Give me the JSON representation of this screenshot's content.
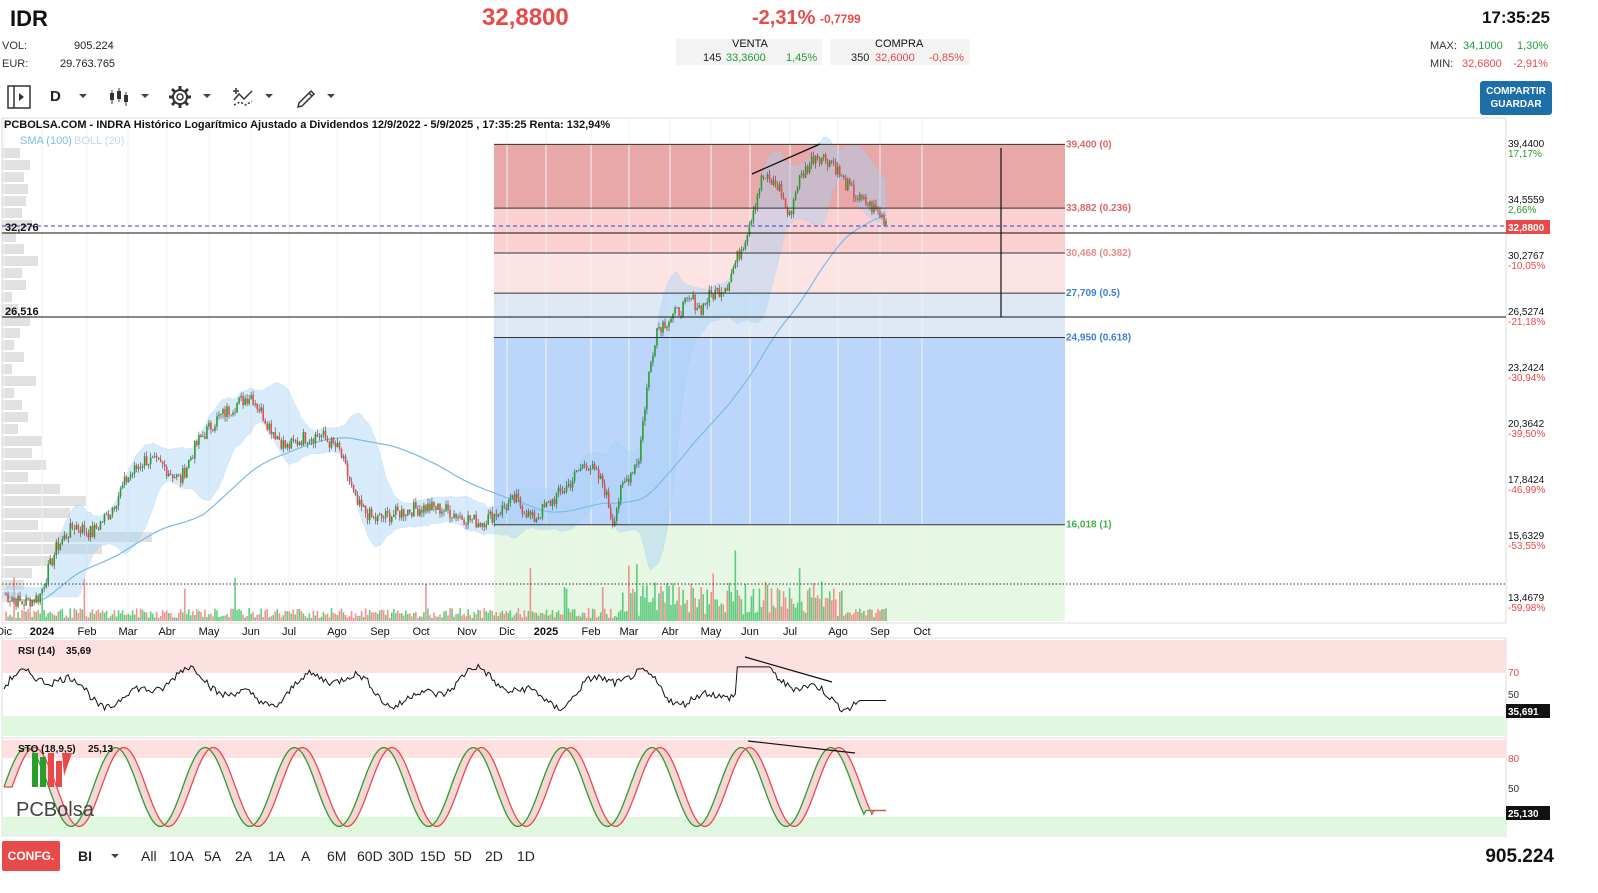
{
  "header": {
    "ticker": "IDR",
    "price": "32,8800",
    "change_pct": "-2,31%",
    "change_abs": "-0,7799",
    "time": "17:35:25",
    "vol_label": "VOL:",
    "vol_value": "905.224",
    "eur_label": "EUR:",
    "eur_value": "29.763.765",
    "venta_label": "VENTA",
    "venta_qty": "145",
    "venta_price": "33,3600",
    "venta_pct": "1,45%",
    "compra_label": "COMPRA",
    "compra_qty": "350",
    "compra_price": "32,6000",
    "compra_pct": "-0,85%",
    "max_label": "MAX:",
    "max_value": "34,1000",
    "max_pct": "1,30%",
    "min_label": "MIN:",
    "min_value": "32,6800",
    "min_pct": "-2,91%"
  },
  "toolbar": {
    "interval": "D",
    "share_label_1": "COMPARTIR",
    "share_label_2": "GUARDAR",
    "icons": [
      "panel-toggle-icon",
      "chevron-down-icon",
      "candlestick-icon",
      "gear-icon",
      "indicator-icon",
      "pencil-icon"
    ]
  },
  "chart_info": {
    "title": "PCBOLSA.COM - INDRA Histórico Logarítmico Ajustado a Dividendos 12/9/2022 - 5/9/2025 , 17:35:25 Renta: 132,94%",
    "legend_sma": "SMA (100)",
    "legend_boll": "BOLL (20)",
    "level_1": "32,276",
    "level_2": "26,516",
    "rsi_label": "RSI (14)",
    "rsi_value": "35,69",
    "rsi_badge": "35,691",
    "sto_label": "STO (18,9,5)",
    "sto_value": "25,13",
    "sto_badge": "25,130",
    "logo_text": "PCBolsa",
    "price_badge": "32,8800"
  },
  "chart_data": {
    "type": "candlestick",
    "x_ticks": [
      "Dic",
      "2024",
      "Feb",
      "Mar",
      "Abr",
      "May",
      "Jun",
      "Jul",
      "Ago",
      "Sep",
      "Oct",
      "Nov",
      "Dic",
      "2025",
      "Feb",
      "Mar",
      "Abr",
      "May",
      "Jun",
      "Jul",
      "Ago",
      "Sep",
      "Oct"
    ],
    "y_axis": [
      {
        "price": "39,4400",
        "pct": "17,17%"
      },
      {
        "price": "34,5559",
        "pct": "2,66%"
      },
      {
        "price": "30,2767",
        "pct": "-10,05%"
      },
      {
        "price": "26,5274",
        "pct": "-21,18%"
      },
      {
        "price": "23,2424",
        "pct": "-30,94%"
      },
      {
        "price": "20,3642",
        "pct": "-39,50%"
      },
      {
        "price": "17,8424",
        "pct": "-46,99%"
      },
      {
        "price": "15,6329",
        "pct": "-53,55%"
      },
      {
        "price": "13,4679",
        "pct": "-59,98%"
      }
    ],
    "y_scale": "log",
    "fibonacci": [
      {
        "label": "39,400 (0)",
        "price": 39.4,
        "color": "#e06666"
      },
      {
        "label": "33,882 (0.236)",
        "price": 33.882,
        "color": "#e06666"
      },
      {
        "label": "30,468 (0.382)",
        "price": 30.468,
        "color": "#e88a8a"
      },
      {
        "label": "27,709 (0.5)",
        "price": 27.709,
        "color": "#3d7fd6"
      },
      {
        "label": "24,950 (0.618)",
        "price": 24.95,
        "color": "#3d7fd6"
      },
      {
        "label": "16,018 (1)",
        "price": 16.018,
        "color": "#3fb24d"
      }
    ],
    "price_path": [
      [
        0,
        13.6
      ],
      [
        0.02,
        13.3
      ],
      [
        0.04,
        13.5
      ],
      [
        0.06,
        15.2
      ],
      [
        0.08,
        16.0
      ],
      [
        0.1,
        15.7
      ],
      [
        0.12,
        16.5
      ],
      [
        0.14,
        17.9
      ],
      [
        0.16,
        18.7
      ],
      [
        0.18,
        18.4
      ],
      [
        0.2,
        17.8
      ],
      [
        0.22,
        19.5
      ],
      [
        0.24,
        20.5
      ],
      [
        0.26,
        21.2
      ],
      [
        0.28,
        21.8
      ],
      [
        0.3,
        20.3
      ],
      [
        0.32,
        19.2
      ],
      [
        0.34,
        19.7
      ],
      [
        0.36,
        19.8
      ],
      [
        0.38,
        19.1
      ],
      [
        0.4,
        16.8
      ],
      [
        0.42,
        16.2
      ],
      [
        0.44,
        16.4
      ],
      [
        0.46,
        16.6
      ],
      [
        0.48,
        16.7
      ],
      [
        0.5,
        16.6
      ],
      [
        0.52,
        16.3
      ],
      [
        0.54,
        16.1
      ],
      [
        0.56,
        16.5
      ],
      [
        0.58,
        17.0
      ],
      [
        0.6,
        16.2
      ],
      [
        0.62,
        16.9
      ],
      [
        0.64,
        17.6
      ],
      [
        0.66,
        18.6
      ],
      [
        0.68,
        17.6
      ],
      [
        0.69,
        16.1
      ],
      [
        0.7,
        17.4
      ],
      [
        0.72,
        18.8
      ],
      [
        0.73,
        22.5
      ],
      [
        0.74,
        25.5
      ],
      [
        0.76,
        26.3
      ],
      [
        0.78,
        27.3
      ],
      [
        0.79,
        26.7
      ],
      [
        0.8,
        27.5
      ],
      [
        0.82,
        28.3
      ],
      [
        0.84,
        31.5
      ],
      [
        0.86,
        36.5
      ],
      [
        0.87,
        36.0
      ],
      [
        0.88,
        35.5
      ],
      [
        0.89,
        33.0
      ],
      [
        0.9,
        36.0
      ],
      [
        0.92,
        38.5
      ],
      [
        0.94,
        37.8
      ],
      [
        0.95,
        36.3
      ],
      [
        0.96,
        35.4
      ],
      [
        0.97,
        34.5
      ],
      [
        0.98,
        34.2
      ],
      [
        0.99,
        33.6
      ],
      [
        1.0,
        32.88
      ]
    ],
    "rsi_level_high": 70,
    "rsi_level_mid": 50,
    "sto_level_high": 80,
    "sto_level_mid": 50
  },
  "footer": {
    "config_label": "CONFG.",
    "chart_type": "BI",
    "periods": [
      "All",
      "10A",
      "5A",
      "2A",
      "1A",
      "A",
      "6M",
      "60D",
      "30D",
      "15D",
      "5D",
      "2D",
      "1D"
    ],
    "volume": "905.224"
  }
}
